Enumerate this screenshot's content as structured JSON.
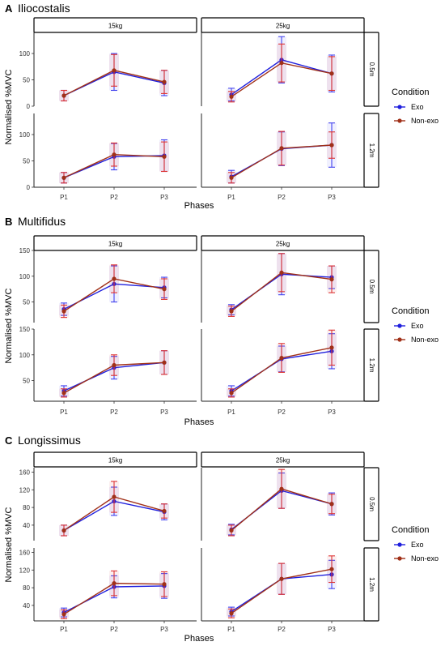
{
  "condition_legend": {
    "title": "Condition",
    "items": [
      {
        "label": "Exo",
        "color": "#1f1fdd"
      },
      {
        "label": "Non-exo",
        "color": "#a03018"
      }
    ]
  },
  "errorbar_colors": {
    "exo": "#4444ee",
    "nonexo": "#dd3333"
  },
  "chart_data": [
    {
      "type": "line",
      "panel_label": "A",
      "title": "Iliocostalis",
      "xlabel": "Phases",
      "ylabel": "Normalised %MVC",
      "x": [
        "P1",
        "P2",
        "P3"
      ],
      "column_facets": [
        "15kg",
        "25kg"
      ],
      "row_facets": [
        "0.5m",
        "1.2m"
      ],
      "rows": [
        {
          "ylim": [
            0,
            140
          ],
          "yticks": [
            0,
            50,
            100
          ],
          "cells": [
            {
              "series": [
                {
                  "name": "Exo",
                  "values": [
                    20,
                    65,
                    44
                  ],
                  "err": [
                    10,
                    35,
                    24
                  ]
                },
                {
                  "name": "Non-exo",
                  "values": [
                    20,
                    68,
                    46
                  ],
                  "err": [
                    10,
                    30,
                    22
                  ]
                }
              ]
            },
            {
              "series": [
                {
                  "name": "Exo",
                  "values": [
                    22,
                    88,
                    62
                  ],
                  "err": [
                    12,
                    44,
                    35
                  ]
                },
                {
                  "name": "Non-exo",
                  "values": [
                    18,
                    82,
                    62
                  ],
                  "err": [
                    10,
                    36,
                    32
                  ]
                }
              ]
            }
          ]
        },
        {
          "ylim": [
            0,
            140
          ],
          "yticks": [
            0,
            50,
            100
          ],
          "cells": [
            {
              "series": [
                {
                  "name": "Exo",
                  "values": [
                    18,
                    58,
                    60
                  ],
                  "err": [
                    10,
                    25,
                    30
                  ]
                },
                {
                  "name": "Non-exo",
                  "values": [
                    18,
                    62,
                    58
                  ],
                  "err": [
                    10,
                    22,
                    28
                  ]
                }
              ]
            },
            {
              "series": [
                {
                  "name": "Exo",
                  "values": [
                    20,
                    73,
                    80
                  ],
                  "err": [
                    12,
                    32,
                    42
                  ]
                },
                {
                  "name": "Non-exo",
                  "values": [
                    18,
                    74,
                    80
                  ],
                  "err": [
                    10,
                    32,
                    25
                  ]
                }
              ]
            }
          ]
        }
      ]
    },
    {
      "type": "line",
      "panel_label": "B",
      "title": "Multifidus",
      "xlabel": "Phases",
      "ylabel": "Normalised %MVC",
      "x": [
        "P1",
        "P2",
        "P3"
      ],
      "column_facets": [
        "15kg",
        "25kg"
      ],
      "row_facets": [
        "0.5m",
        "1.2m"
      ],
      "rows": [
        {
          "ylim": [
            10,
            150
          ],
          "yticks": [
            50,
            100,
            150
          ],
          "cells": [
            {
              "series": [
                {
                  "name": "Exo",
                  "values": [
                    36,
                    85,
                    78
                  ],
                  "err": [
                    12,
                    35,
                    20
                  ]
                },
                {
                  "name": "Non-exo",
                  "values": [
                    32,
                    95,
                    75
                  ],
                  "err": [
                    12,
                    27,
                    20
                  ]
                }
              ]
            },
            {
              "series": [
                {
                  "name": "Exo",
                  "values": [
                    35,
                    104,
                    98
                  ],
                  "err": [
                    10,
                    40,
                    22
                  ]
                },
                {
                  "name": "Non-exo",
                  "values": [
                    32,
                    107,
                    94
                  ],
                  "err": [
                    10,
                    37,
                    26
                  ]
                }
              ]
            }
          ]
        },
        {
          "ylim": [
            10,
            150
          ],
          "yticks": [
            50,
            100,
            150
          ],
          "cells": [
            {
              "series": [
                {
                  "name": "Exo",
                  "values": [
                    30,
                    75,
                    85
                  ],
                  "err": [
                    10,
                    22,
                    23
                  ]
                },
                {
                  "name": "Non-exo",
                  "values": [
                    26,
                    80,
                    85
                  ],
                  "err": [
                    8,
                    20,
                    23
                  ]
                }
              ]
            },
            {
              "series": [
                {
                  "name": "Exo",
                  "values": [
                    30,
                    92,
                    107
                  ],
                  "err": [
                    10,
                    25,
                    34
                  ]
                },
                {
                  "name": "Non-exo",
                  "values": [
                    26,
                    94,
                    114
                  ],
                  "err": [
                    8,
                    28,
                    34
                  ]
                }
              ]
            }
          ]
        }
      ]
    },
    {
      "type": "line",
      "panel_label": "C",
      "title": "Longissimus",
      "xlabel": "Phases",
      "ylabel": "Normalised %MVC",
      "x": [
        "P1",
        "P2",
        "P3"
      ],
      "column_facets": [
        "15kg",
        "25kg"
      ],
      "row_facets": [
        "0.5m",
        "1.2m"
      ],
      "rows": [
        {
          "ylim": [
            5,
            170
          ],
          "yticks": [
            40,
            80,
            120,
            160
          ],
          "cells": [
            {
              "series": [
                {
                  "name": "Exo",
                  "values": [
                    28,
                    94,
                    70
                  ],
                  "err": [
                    12,
                    32,
                    18
                  ]
                },
                {
                  "name": "Non-exo",
                  "values": [
                    28,
                    104,
                    72
                  ],
                  "err": [
                    12,
                    35,
                    16
                  ]
                }
              ]
            },
            {
              "series": [
                {
                  "name": "Exo",
                  "values": [
                    30,
                    118,
                    88
                  ],
                  "err": [
                    12,
                    40,
                    25
                  ]
                },
                {
                  "name": "Non-exo",
                  "values": [
                    28,
                    122,
                    88
                  ],
                  "err": [
                    12,
                    44,
                    22
                  ]
                }
              ]
            }
          ]
        },
        {
          "ylim": [
            5,
            170
          ],
          "yticks": [
            40,
            80,
            120,
            160
          ],
          "cells": [
            {
              "series": [
                {
                  "name": "Exo",
                  "values": [
                    24,
                    82,
                    84
                  ],
                  "err": [
                    10,
                    25,
                    28
                  ]
                },
                {
                  "name": "Non-exo",
                  "values": [
                    20,
                    90,
                    88
                  ],
                  "err": [
                    10,
                    28,
                    28
                  ]
                }
              ]
            },
            {
              "series": [
                {
                  "name": "Exo",
                  "values": [
                    26,
                    100,
                    110
                  ],
                  "err": [
                    10,
                    35,
                    32
                  ]
                },
                {
                  "name": "Non-exo",
                  "values": [
                    22,
                    100,
                    122
                  ],
                  "err": [
                    10,
                    35,
                    30
                  ]
                }
              ]
            }
          ]
        }
      ]
    }
  ]
}
